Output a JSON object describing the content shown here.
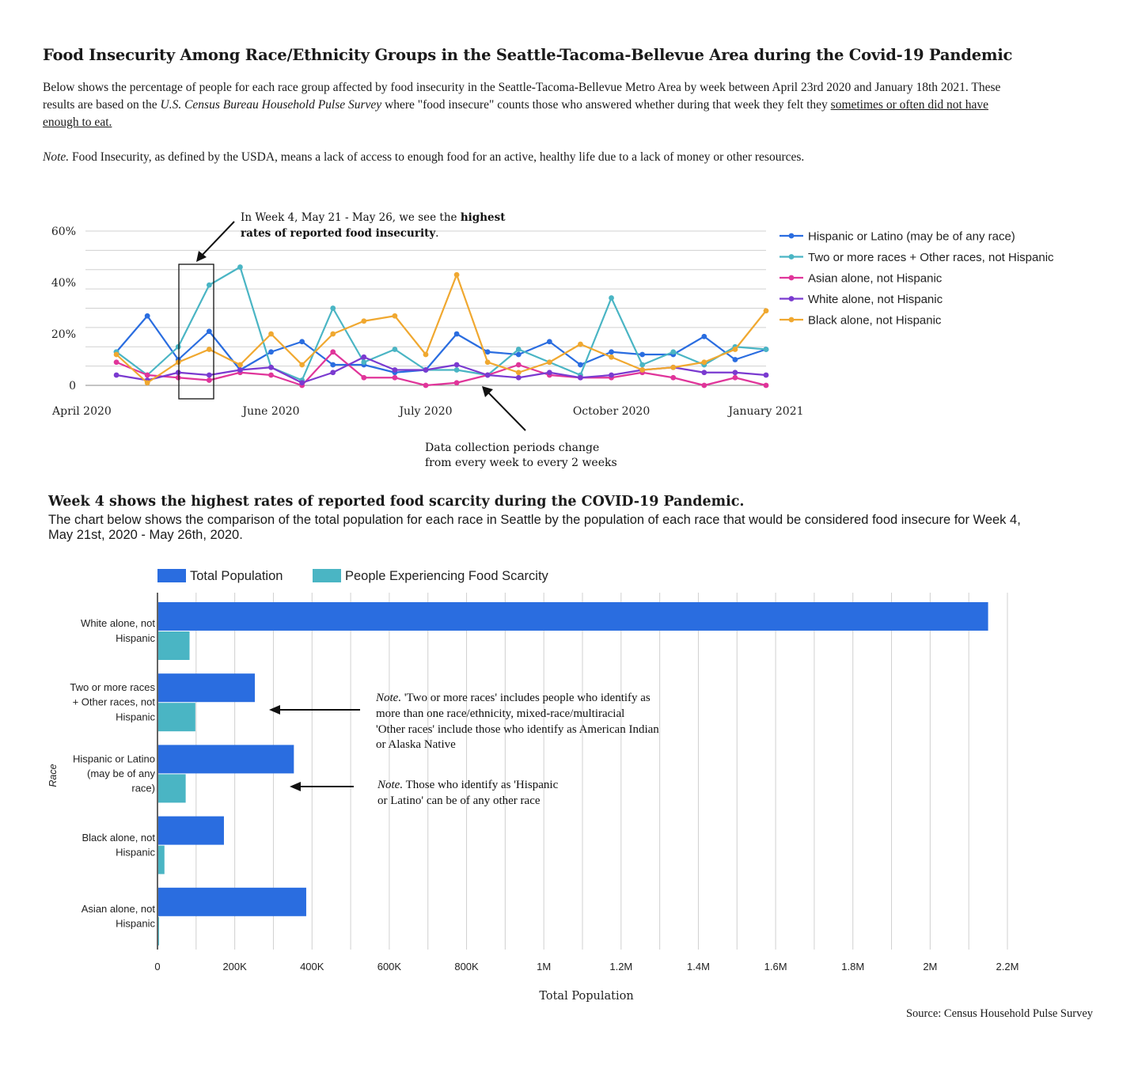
{
  "header": {
    "title": "Food Insecurity Among Race/Ethnicity Groups in the Seattle-Tacoma-Bellevue Area during the Covid-19 Pandemic",
    "intro_part1": "Below shows the percentage of people for each race group affected by food insecurity in the Seattle-Tacoma-Bellevue Metro Area by week between April 23rd 2020 and January 18th 2021. These results are based on the ",
    "intro_italic": "U.S. Census Bureau Household Pulse Survey",
    "intro_part2": " where \"food insecure\" counts those who answered whether during that week they felt they ",
    "intro_underlined": "sometimes or often did not have enough to eat.",
    "note_label": "Note.",
    "note_text": " Food Insecurity, as defined by the USDA, means a lack of access to enough food for an active, healthy life due to a lack of money or other resources."
  },
  "section2": {
    "heading": "Week 4 shows the highest rates of reported food scarcity during the COVID-19 Pandemic.",
    "description": "The chart below shows the comparison of the total population for each race in Seattle by the population of each race that would be considered food insecure for Week 4, May 21st, 2020 - May 26th, 2020."
  },
  "source": "Source: Census Household Pulse Survey",
  "colors": {
    "hispanic": "#2a6de0",
    "two_or_more": "#4ab5c4",
    "asian": "#e0359a",
    "white": "#7a3ad0",
    "black": "#f0a830",
    "total_population": "#2a6de0",
    "food_scarcity": "#4ab5c4",
    "grid": "#d0d0d0"
  },
  "chart_data": [
    {
      "type": "line",
      "title": "",
      "ylabel": "",
      "ylim": [
        0,
        60
      ],
      "y_ticks": [
        {
          "value": 0,
          "label": "0"
        },
        {
          "value": 20,
          "label": "20%"
        },
        {
          "value": 40,
          "label": "40%"
        },
        {
          "value": 60,
          "label": "60%"
        }
      ],
      "x_ticks": [
        {
          "index": 0,
          "label": "April 2020"
        },
        {
          "index": 6,
          "label": "June 2020"
        },
        {
          "index": 11,
          "label": "July 2020"
        },
        {
          "index": 17,
          "label": "October 2020"
        },
        {
          "index": 22,
          "label": "January 2021"
        }
      ],
      "x_index_range": [
        0,
        22
      ],
      "point_indices": [
        1,
        2,
        3,
        4,
        5,
        6,
        7,
        8,
        9,
        10,
        11,
        12,
        13,
        14,
        15,
        16,
        17,
        18,
        19,
        20,
        21,
        22
      ],
      "grid": true,
      "legend_position": "right",
      "series": [
        {
          "name": "Hispanic or Latino (may be of any race)",
          "color_key": "hispanic",
          "values": [
            13,
            27,
            10,
            21,
            6,
            13,
            17,
            8,
            8,
            5,
            6,
            20,
            13,
            12,
            17,
            8,
            13,
            12,
            12,
            19,
            10,
            14
          ]
        },
        {
          "name": "Two or more races + Other races, not Hispanic",
          "color_key": "two_or_more",
          "values": [
            13,
            4,
            15,
            39,
            46,
            7,
            2,
            30,
            9,
            14,
            6,
            6,
            4,
            14,
            9,
            4,
            34,
            8,
            13,
            8,
            15,
            14
          ]
        },
        {
          "name": "Asian alone, not Hispanic",
          "color_key": "asian",
          "values": [
            9,
            4,
            3,
            2,
            5,
            4,
            0,
            13,
            3,
            3,
            0,
            1,
            4,
            8,
            4,
            3,
            3,
            5,
            3,
            0,
            3,
            0
          ]
        },
        {
          "name": "White alone, not Hispanic",
          "color_key": "white",
          "values": [
            4,
            2,
            5,
            4,
            6,
            7,
            1,
            5,
            11,
            6,
            6,
            8,
            4,
            3,
            5,
            3,
            4,
            6,
            7,
            5,
            5,
            4
          ]
        },
        {
          "name": "Black alone, not Hispanic",
          "color_key": "black",
          "values": [
            12,
            1,
            9,
            14,
            8,
            20,
            8,
            20,
            25,
            27,
            12,
            43,
            9,
            5,
            9,
            16,
            11,
            6,
            7,
            9,
            14,
            29
          ]
        }
      ],
      "annotations": {
        "peak_note_prefix": "In Week 4, May 21 - May 26, we see the ",
        "peak_note_bold1": "highest",
        "peak_note_bold2": "rates of reported food insecurity",
        "peak_note_suffix": ".",
        "period_note_line1": "Data collection periods change",
        "period_note_line2": "from every week to every 2 weeks"
      }
    },
    {
      "type": "bar",
      "orientation": "horizontal",
      "title": "",
      "xlabel": "Total Population",
      "ylabel": "Race",
      "xlim": [
        0,
        2200000
      ],
      "x_ticks": [
        {
          "value": 0,
          "label": "0"
        },
        {
          "value": 200000,
          "label": "200K"
        },
        {
          "value": 400000,
          "label": "400K"
        },
        {
          "value": 600000,
          "label": "600K"
        },
        {
          "value": 800000,
          "label": "800K"
        },
        {
          "value": 1000000,
          "label": "1M"
        },
        {
          "value": 1200000,
          "label": "1.2M"
        },
        {
          "value": 1400000,
          "label": "1.4M"
        },
        {
          "value": 1600000,
          "label": "1.6M"
        },
        {
          "value": 1800000,
          "label": "1.8M"
        },
        {
          "value": 2000000,
          "label": "2M"
        },
        {
          "value": 2200000,
          "label": "2.2M"
        }
      ],
      "grid": true,
      "legend_position": "top",
      "categories": [
        {
          "lines": [
            "White alone, not",
            "Hispanic"
          ]
        },
        {
          "lines": [
            "Two or more races",
            "+ Other races, not",
            "Hispanic"
          ]
        },
        {
          "lines": [
            "Hispanic or Latino",
            "(may be of any",
            "race)"
          ]
        },
        {
          "lines": [
            "Black alone, not",
            "Hispanic"
          ]
        },
        {
          "lines": [
            "Asian alone, not",
            "Hispanic"
          ]
        }
      ],
      "series": [
        {
          "name": "Total Population",
          "color_key": "total_population",
          "values": [
            2150000,
            252000,
            353000,
            172000,
            385000
          ]
        },
        {
          "name": "People Experiencing Food Scarcity",
          "color_key": "food_scarcity",
          "values": [
            83000,
            98000,
            73000,
            18000,
            4000
          ]
        }
      ],
      "annotations": {
        "note1_label": "Note.",
        "note1_line1": " 'Two or more races' includes people who identify as",
        "note1_line2": "more than one race/ethnicity, mixed-race/multiracial",
        "note1_line3": "'Other races' include those who identify as American Indian",
        "note1_line4": "or Alaska Native",
        "note2_label": "Note.",
        "note2_line1": " Those who identify as 'Hispanic",
        "note2_line2": "or Latino' can be of any other race"
      }
    }
  ]
}
